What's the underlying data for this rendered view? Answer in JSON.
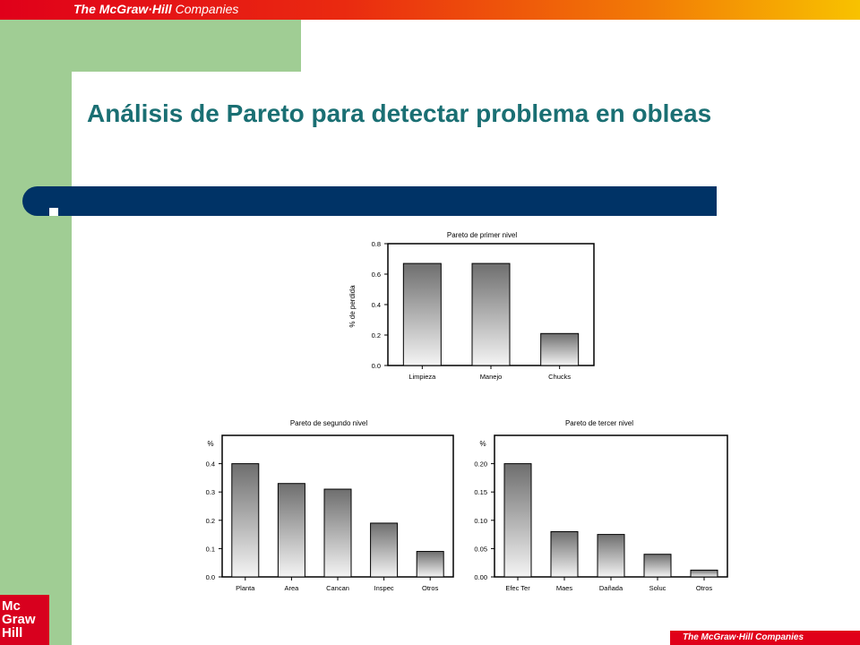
{
  "header": {
    "company_prefix": "The ",
    "company_brand": "McGraw·Hill",
    "company_suffix": " Companies"
  },
  "slide": {
    "title": "Análisis de Pareto para detectar problema en obleas"
  },
  "logo": {
    "line1": "Mc",
    "line2": "Graw",
    "line3": "Hill"
  },
  "footer": {
    "text": "The McGraw·Hill Companies"
  },
  "colors": {
    "title": "#1a6f73",
    "band": "#003366",
    "green": "#a0cd94",
    "brand_red": "#e0001a"
  },
  "chart_data": [
    {
      "type": "bar",
      "title": "Pareto de primer nivel",
      "ylabel": "% de perdida",
      "xlabel": "",
      "categories": [
        "Limpieza",
        "Manejo",
        "Chucks"
      ],
      "values": [
        0.67,
        0.67,
        0.21
      ],
      "ylim": [
        0,
        0.8
      ],
      "yticks": [
        "0.0",
        "0.2",
        "0.4",
        "0.6",
        "0.8"
      ],
      "grid": false
    },
    {
      "type": "bar",
      "title": "Pareto de segundo nivel",
      "ylabel": "%",
      "xlabel": "",
      "categories": [
        "Planta",
        "Area",
        "Cancan",
        "Inspec",
        "Otros"
      ],
      "values": [
        0.4,
        0.33,
        0.31,
        0.19,
        0.09
      ],
      "ylim": [
        0,
        0.5
      ],
      "yticks": [
        "0.0",
        "0.1",
        "0.2",
        "0.3",
        "0.4"
      ],
      "grid": false
    },
    {
      "type": "bar",
      "title": "Pareto de tercer nivel",
      "ylabel": "%",
      "xlabel": "",
      "categories": [
        "Efec Ter",
        "Maes",
        "Dañada",
        "Soluc",
        "Otros"
      ],
      "values": [
        0.2,
        0.08,
        0.075,
        0.04,
        0.012
      ],
      "ylim": [
        0,
        0.25
      ],
      "yticks": [
        "0.00",
        "0.05",
        "0.10",
        "0.15",
        "0.20"
      ],
      "grid": false
    }
  ]
}
